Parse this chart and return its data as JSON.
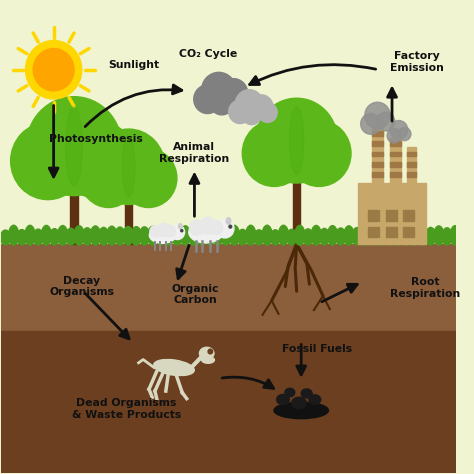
{
  "bg_sky_color": "#f0f4d0",
  "bg_ground_color": "#8B5E3C",
  "bg_soil_color": "#6B3F1F",
  "grass_color": "#4a9c1f",
  "tree_trunk_color": "#5c3010",
  "tree_canopy_color": "#5cb81a",
  "sun_yellow": "#FFD700",
  "sun_orange": "#FFA500",
  "cloud_dark": "#808080",
  "cloud_light": "#b0b0b0",
  "factory_tan": "#c8a86a",
  "factory_brown": "#9a7a45",
  "factory_stripe": "#a07845",
  "arrow_color": "#111111",
  "text_color": "#111111",
  "skeleton_color": "#d8d8c0",
  "coal_color": "#1a1a1a",
  "sheep_white": "#f0f0f0",
  "sheep_legs": "#888888",
  "root_color": "#4a2808",
  "labels": {
    "sunlight": "Sunlight",
    "co2": "CO₂ Cycle",
    "factory_emission": "Factory\nEmission",
    "photosynthesis": "Photosynthesis",
    "animal_respiration": "Animal\nRespiration",
    "decay_organisms": "Decay\nOrganisms",
    "organic_carbon": "Organic\nCarbon",
    "root_respiration": "Root\nRespiration",
    "fossil_fuels": "Fossil Fuels",
    "dead_organisms": "Dead Organisms\n& Waste Products"
  }
}
